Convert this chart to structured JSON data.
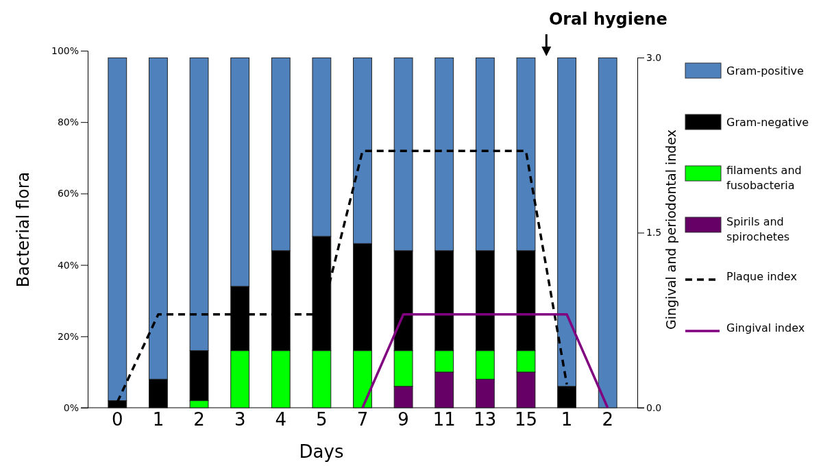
{
  "chart_data": {
    "type": "bar",
    "stacked": true,
    "xlabel": "Days",
    "ylabel": "Bacterial flora",
    "y2label": "Gingival and periodontal index",
    "annotations": [
      "Oral hygiene"
    ],
    "categories": [
      "0",
      "1",
      "2",
      "3",
      "4",
      "5",
      "7",
      "9",
      "11",
      "13",
      "15",
      "1",
      "2"
    ],
    "ylim": [
      0,
      100
    ],
    "yticks": [
      {
        "value": 0,
        "label": "0%"
      },
      {
        "value": 20,
        "label": "20%"
      },
      {
        "value": 40,
        "label": "40%"
      },
      {
        "value": 60,
        "label": "60%"
      },
      {
        "value": 80,
        "label": "80%"
      },
      {
        "value": 100,
        "label": "100%"
      }
    ],
    "y2lim": [
      0,
      3
    ],
    "y2ticks": [
      {
        "value": 0,
        "label": "0.0"
      },
      {
        "value": 1.5,
        "label": "1.5"
      },
      {
        "value": 3,
        "label": "3.0"
      }
    ],
    "legend": "right",
    "series": [
      {
        "name": "Spirils and spirochetes",
        "color": "#660066",
        "values": [
          null,
          null,
          null,
          null,
          null,
          null,
          null,
          6,
          10,
          8,
          10,
          null,
          null
        ]
      },
      {
        "name": "filaments and fusobacteria",
        "color": "#00ff00",
        "values": [
          null,
          null,
          2,
          16,
          16,
          16,
          16,
          10,
          6,
          8,
          6,
          null,
          null
        ]
      },
      {
        "name": "Gram-negative",
        "color": "#000000",
        "values": [
          2,
          8,
          14,
          18,
          28,
          32,
          30,
          28,
          28,
          28,
          28,
          6,
          null
        ]
      },
      {
        "name": "Gram-positive",
        "color": "#4f81bd",
        "values": [
          96,
          90,
          82,
          64,
          54,
          50,
          52,
          54,
          54,
          54,
          54,
          92,
          98
        ]
      },
      {
        "name": "Plaque index",
        "type": "line",
        "axis": "y2",
        "line_style": "dashed",
        "color": "#000000",
        "values": [
          0.05,
          0.8,
          0.8,
          0.8,
          0.8,
          0.8,
          2.2,
          2.2,
          2.2,
          2.2,
          2.2,
          0.2,
          null
        ]
      },
      {
        "name": "Gingival index",
        "type": "line",
        "axis": "y2",
        "line_style": "solid",
        "color": "#800080",
        "values": [
          null,
          null,
          null,
          null,
          null,
          null,
          0,
          0.8,
          0.8,
          0.8,
          0.8,
          0.8,
          0
        ]
      }
    ]
  }
}
